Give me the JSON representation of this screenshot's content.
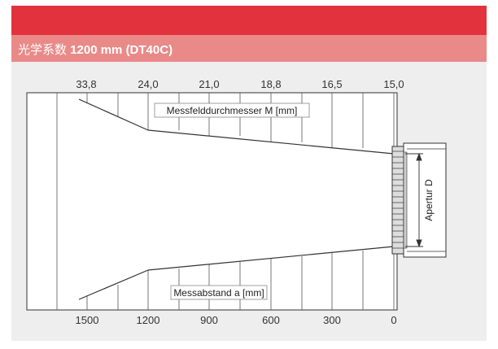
{
  "header": {
    "title_cjk": "光学系数",
    "title_bold": "1200 mm (DT40C)"
  },
  "diagram": {
    "top_scale": [
      "33,8",
      "24,0",
      "21,0",
      "18,8",
      "16,5",
      "15,0"
    ],
    "bottom_scale": [
      "1500",
      "1200",
      "900",
      "600",
      "300",
      "0"
    ],
    "label_top": "Messfelddurchmesser M [mm]",
    "label_bottom": "Messabstand a [mm]",
    "aperture_label": "Apertur D"
  }
}
